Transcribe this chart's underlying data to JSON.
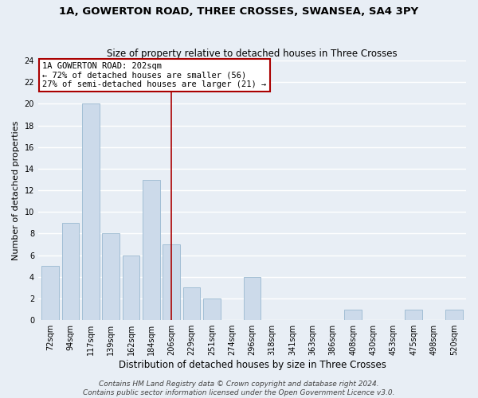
{
  "title": "1A, GOWERTON ROAD, THREE CROSSES, SWANSEA, SA4 3PY",
  "subtitle": "Size of property relative to detached houses in Three Crosses",
  "xlabel": "Distribution of detached houses by size in Three Crosses",
  "ylabel": "Number of detached properties",
  "bar_labels": [
    "72sqm",
    "94sqm",
    "117sqm",
    "139sqm",
    "162sqm",
    "184sqm",
    "206sqm",
    "229sqm",
    "251sqm",
    "274sqm",
    "296sqm",
    "318sqm",
    "341sqm",
    "363sqm",
    "386sqm",
    "408sqm",
    "430sqm",
    "453sqm",
    "475sqm",
    "498sqm",
    "520sqm"
  ],
  "bar_values": [
    5,
    9,
    20,
    8,
    6,
    13,
    7,
    3,
    2,
    0,
    4,
    0,
    0,
    0,
    0,
    1,
    0,
    0,
    1,
    0,
    1
  ],
  "bar_color": "#ccdaea",
  "bar_edgecolor": "#99b8d0",
  "highlight_x_label": "206sqm",
  "highlight_line_color": "#aa0000",
  "ylim": [
    0,
    24
  ],
  "yticks": [
    0,
    2,
    4,
    6,
    8,
    10,
    12,
    14,
    16,
    18,
    20,
    22,
    24
  ],
  "annotation_title": "1A GOWERTON ROAD: 202sqm",
  "annotation_line1": "← 72% of detached houses are smaller (56)",
  "annotation_line2": "27% of semi-detached houses are larger (21) →",
  "annotation_box_facecolor": "#ffffff",
  "annotation_box_edgecolor": "#aa0000",
  "footer_line1": "Contains HM Land Registry data © Crown copyright and database right 2024.",
  "footer_line2": "Contains public sector information licensed under the Open Government Licence v3.0.",
  "background_color": "#e8eef5",
  "plot_bg_color": "#e8eef5",
  "grid_color": "#ffffff",
  "title_fontsize": 9.5,
  "subtitle_fontsize": 8.5,
  "xlabel_fontsize": 8.5,
  "ylabel_fontsize": 8,
  "tick_fontsize": 7,
  "annotation_fontsize": 7.5,
  "footer_fontsize": 6.5
}
